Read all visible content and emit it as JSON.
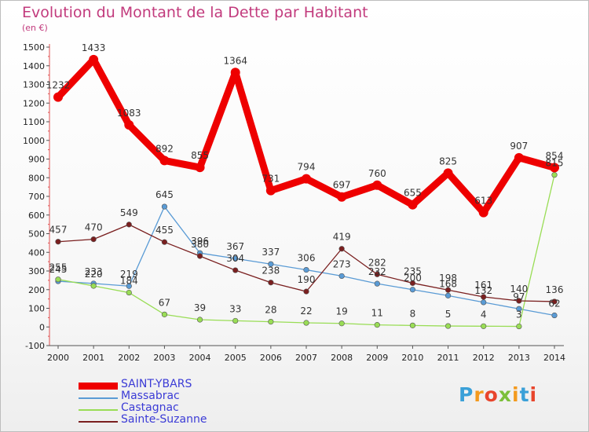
{
  "header": {
    "title": "Evolution du Montant de la Dette par Habitant",
    "subtitle": "(en €)"
  },
  "logo": {
    "text": "Proxiti"
  },
  "chart_data": {
    "type": "line",
    "title": "Evolution du Montant de la Dette par Habitant",
    "ylabel": "(en €)",
    "xlabel": "",
    "x": [
      "2000",
      "2001",
      "2002",
      "2003",
      "2004",
      "2005",
      "2006",
      "2007",
      "2008",
      "2009",
      "2010",
      "2011",
      "2012",
      "2013",
      "2014"
    ],
    "ylim": [
      -100,
      1500
    ],
    "yticks": [
      -100,
      0,
      100,
      200,
      300,
      400,
      500,
      600,
      700,
      800,
      900,
      1000,
      1100,
      1200,
      1300,
      1400,
      1500
    ],
    "grid": false,
    "legend": "bottom-left",
    "series": [
      {
        "name": "SAINT-YBARS",
        "color": "#ee0000",
        "values": [
          1232,
          1433,
          1083,
          892,
          855,
          1364,
          731,
          794,
          697,
          760,
          655,
          825,
          613,
          907,
          854
        ]
      },
      {
        "name": "Massabrac",
        "color": "#5a9bd5",
        "values": [
          245,
          233,
          219,
          645,
          396,
          367,
          337,
          306,
          273,
          232,
          200,
          168,
          132,
          97,
          62
        ]
      },
      {
        "name": "Castagnac",
        "color": "#99dd55",
        "values": [
          255,
          220,
          184,
          67,
          39,
          33,
          28,
          22,
          19,
          11,
          8,
          5,
          4,
          3,
          815
        ]
      },
      {
        "name": "Sainte-Suzanne",
        "color": "#7a1f1f",
        "values": [
          457,
          470,
          549,
          455,
          380,
          304,
          238,
          190,
          419,
          282,
          235,
          198,
          161,
          140,
          136
        ]
      }
    ]
  }
}
